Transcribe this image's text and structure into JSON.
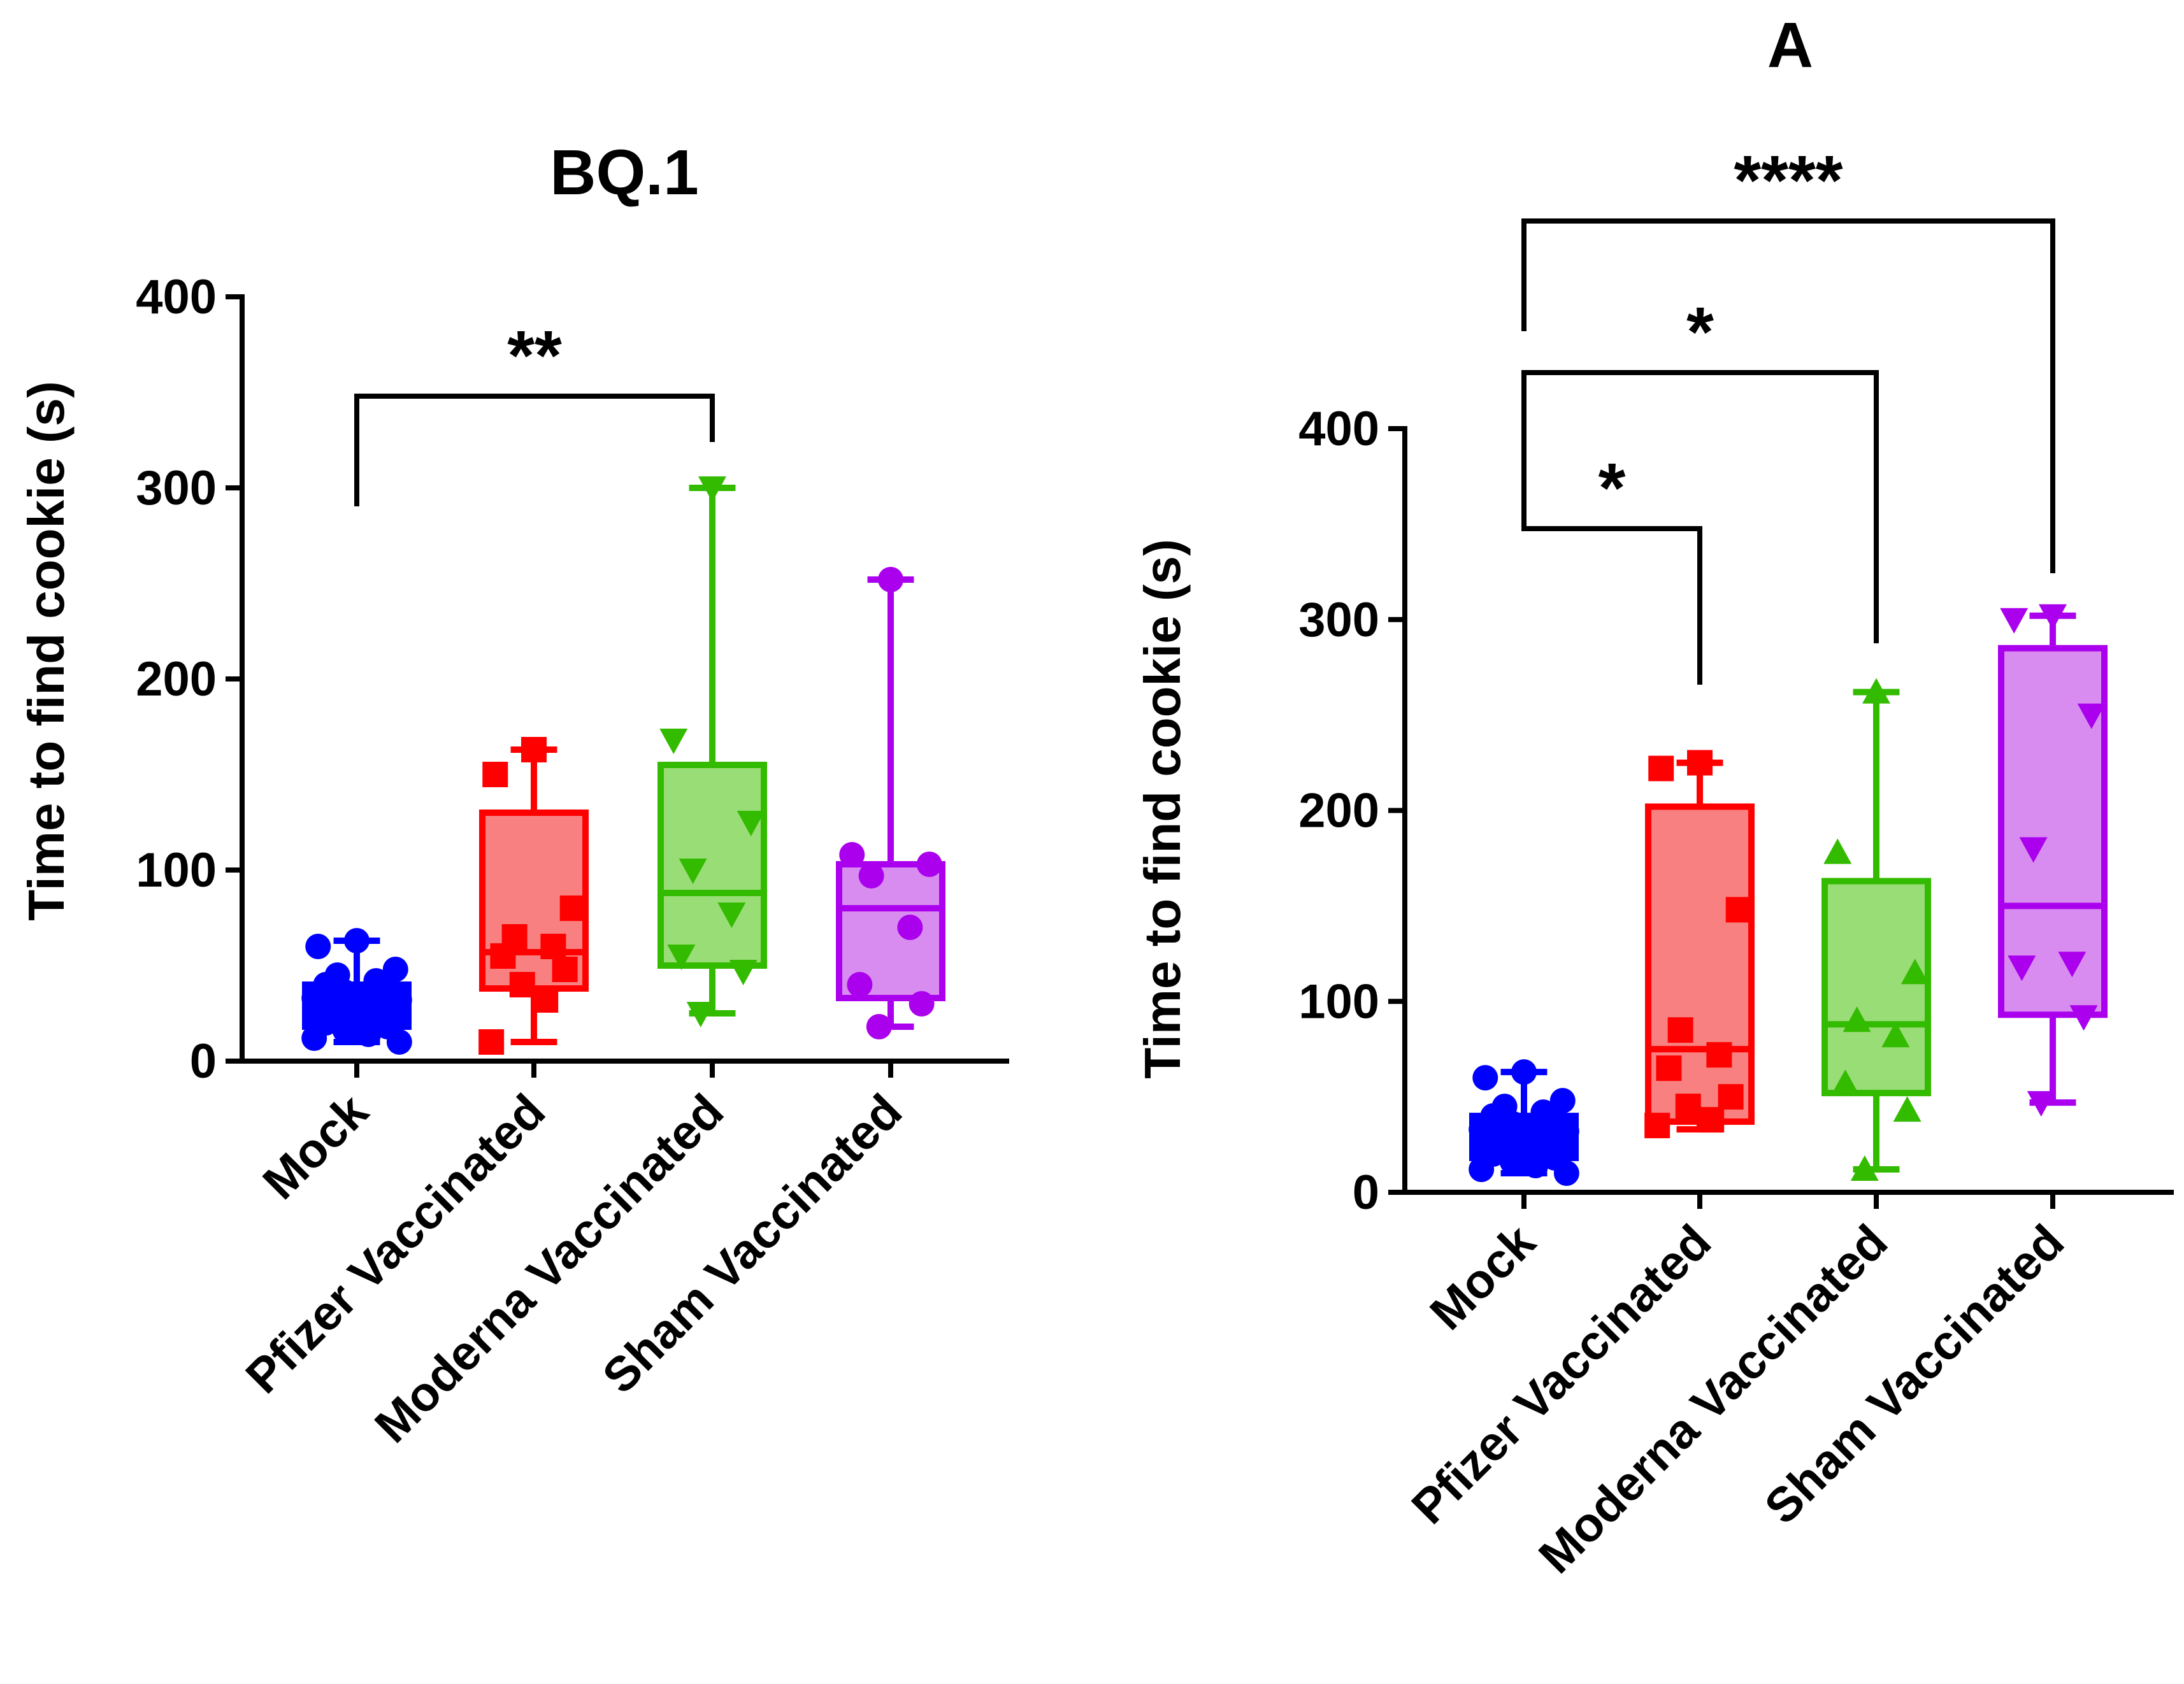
{
  "chart_data": [
    {
      "type": "box",
      "title": "BQ.1",
      "xlabel": "",
      "ylabel": "Time to find cookie (s)",
      "ylim": [
        0,
        400
      ],
      "yticks": [
        0,
        100,
        200,
        300,
        400
      ],
      "categories": [
        "Mock",
        "Pfizer Vaccinated",
        "Moderna Vaccinated",
        "Sham Vaccinated"
      ],
      "grid": false,
      "legend": "none",
      "boxes": [
        {
          "category": "Mock",
          "color": "#0000ff",
          "fill": "#0000ff",
          "marker": "circle",
          "min": 10,
          "q1": 18,
          "median": 32,
          "q3": 40,
          "max": 63,
          "points": [
            63,
            60,
            48,
            45,
            42,
            40,
            38,
            36,
            35,
            33,
            32,
            30,
            28,
            26,
            24,
            22,
            20,
            18,
            16,
            14,
            12,
            10
          ]
        },
        {
          "category": "Pfizer Vaccinated",
          "color": "#ff0000",
          "fill": "#f88080",
          "marker": "square",
          "min": 10,
          "q1": 38,
          "median": 57,
          "q3": 130,
          "max": 163,
          "points": [
            163,
            150,
            80,
            65,
            60,
            55,
            48,
            40,
            32,
            10
          ]
        },
        {
          "category": "Moderna Vaccinated",
          "color": "#33bb00",
          "fill": "#99dd77",
          "marker": "triangle-down",
          "min": 25,
          "q1": 50,
          "median": 88,
          "q3": 155,
          "max": 300,
          "points": [
            300,
            168,
            125,
            100,
            77,
            55,
            47,
            25
          ]
        },
        {
          "category": "Sham Vaccinated",
          "color": "#aa00ee",
          "fill": "#d98cf0",
          "marker": "circle",
          "min": 18,
          "q1": 33,
          "median": 80,
          "q3": 103,
          "max": 252,
          "points": [
            252,
            108,
            103,
            97,
            70,
            40,
            30,
            18
          ]
        }
      ],
      "annotations": [
        {
          "from": "Mock",
          "to": "Moderna Vaccinated",
          "label": "**"
        }
      ]
    },
    {
      "type": "box",
      "title": "A",
      "xlabel": "",
      "ylabel": "Time to find cookie (s)",
      "ylim": [
        0,
        400
      ],
      "yticks": [
        0,
        100,
        200,
        300,
        400
      ],
      "categories": [
        "Mock",
        "Pfizer Vaccinated",
        "Moderna Vaccinated",
        "Sham Vaccinated"
      ],
      "grid": false,
      "legend": "none",
      "boxes": [
        {
          "category": "Mock",
          "color": "#0000ff",
          "fill": "#0000ff",
          "marker": "circle",
          "min": 10,
          "q1": 18,
          "median": 32,
          "q3": 40,
          "max": 63,
          "points": [
            63,
            60,
            48,
            45,
            42,
            40,
            38,
            36,
            35,
            33,
            32,
            30,
            28,
            26,
            24,
            22,
            20,
            18,
            16,
            14,
            12,
            10
          ]
        },
        {
          "category": "Pfizer Vaccinated",
          "color": "#ff0000",
          "fill": "#f88080",
          "marker": "square",
          "min": 33,
          "q1": 37,
          "median": 75,
          "q3": 202,
          "max": 225,
          "points": [
            225,
            222,
            148,
            85,
            72,
            65,
            50,
            45,
            38,
            35
          ]
        },
        {
          "category": "Moderna Vaccinated",
          "color": "#33bb00",
          "fill": "#99dd77",
          "marker": "triangle-up",
          "min": 12,
          "q1": 52,
          "median": 88,
          "q3": 163,
          "max": 262,
          "points": [
            262,
            178,
            115,
            90,
            82,
            57,
            43,
            12
          ]
        },
        {
          "category": "Sham Vaccinated",
          "color": "#aa00ee",
          "fill": "#d98cf0",
          "marker": "triangle-down",
          "min": 47,
          "q1": 93,
          "median": 150,
          "q3": 285,
          "max": 302,
          "points": [
            302,
            300,
            250,
            180,
            120,
            118,
            92,
            47
          ]
        }
      ],
      "annotations": [
        {
          "from": "Mock",
          "to": "Pfizer Vaccinated",
          "label": "*"
        },
        {
          "from": "Mock",
          "to": "Moderna Vaccinated",
          "label": "*"
        },
        {
          "from": "Mock",
          "to": "Sham Vaccinated",
          "label": "****"
        }
      ]
    }
  ]
}
